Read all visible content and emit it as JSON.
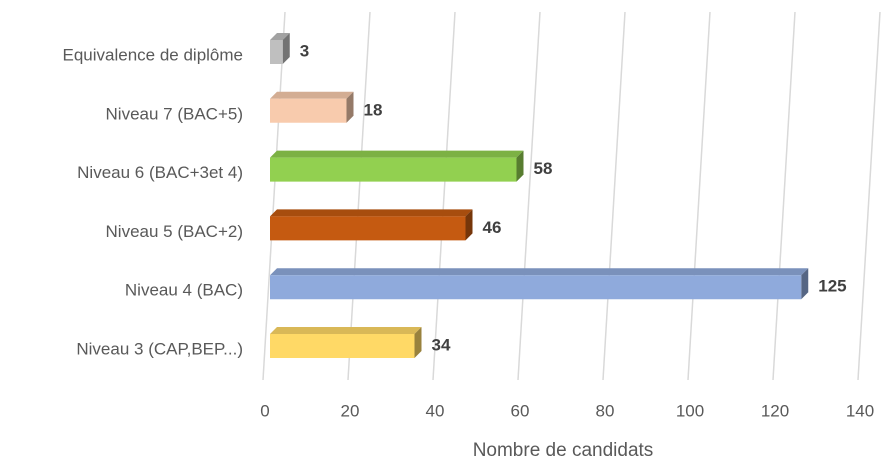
{
  "chart_data": {
    "type": "bar3d_horizontal",
    "categories": [
      "Equivalence de diplôme",
      "Niveau 7 (BAC+5)",
      "Niveau 6 (BAC+3et 4)",
      "Niveau 5 (BAC+2)",
      "Niveau 4 (BAC)",
      "Niveau 3 (CAP,BEP...)"
    ],
    "values": [
      3,
      18,
      58,
      46,
      125,
      34
    ],
    "colors": [
      "#bfbfbf",
      "#f8cbad",
      "#92d050",
      "#c55a11",
      "#8faadc",
      "#ffd966"
    ],
    "xlabel": "Nombre de candidats",
    "xlim": [
      0,
      140
    ],
    "xticks": [
      0,
      20,
      40,
      60,
      80,
      100,
      120,
      140
    ],
    "grid": true
  }
}
